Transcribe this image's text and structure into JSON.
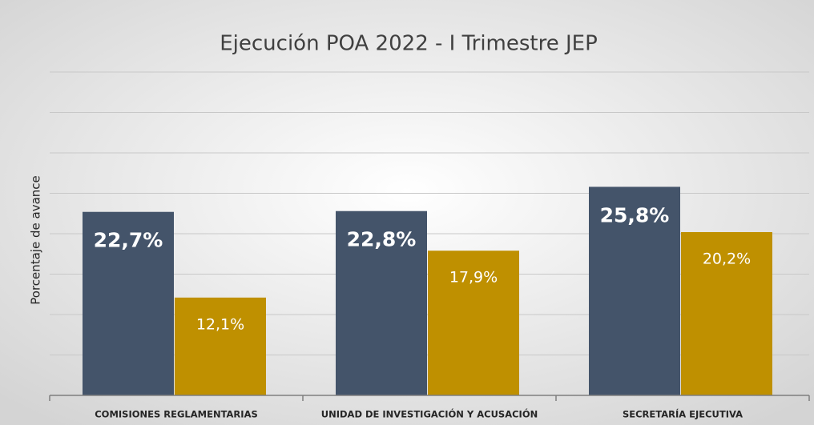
{
  "chart_data": {
    "type": "bar",
    "title": "Ejecución POA 2022 - I Trimestre JEP",
    "y_axis_label": "Porcentaje de avance",
    "categories": [
      "COMISIONES REGLAMENTARIAS",
      "UNIDAD DE INVESTIGACIÓN Y ACUSACIÓN",
      "SECRETARÍA EJECUTIVA"
    ],
    "series": [
      {
        "color": "#44546a",
        "values": [
          22.7,
          22.8,
          25.8
        ],
        "value_labels": [
          "22,7%",
          "22,8%",
          "25,8%"
        ]
      },
      {
        "color": "#bf9000",
        "values": [
          12.1,
          17.9,
          20.2
        ],
        "value_labels": [
          "12,1%",
          "17,9%",
          "20,2%"
        ]
      }
    ],
    "ylim": [
      0,
      40
    ],
    "yticks": [
      0,
      5,
      10,
      15,
      20,
      25,
      30,
      35,
      40
    ],
    "grid": true
  }
}
